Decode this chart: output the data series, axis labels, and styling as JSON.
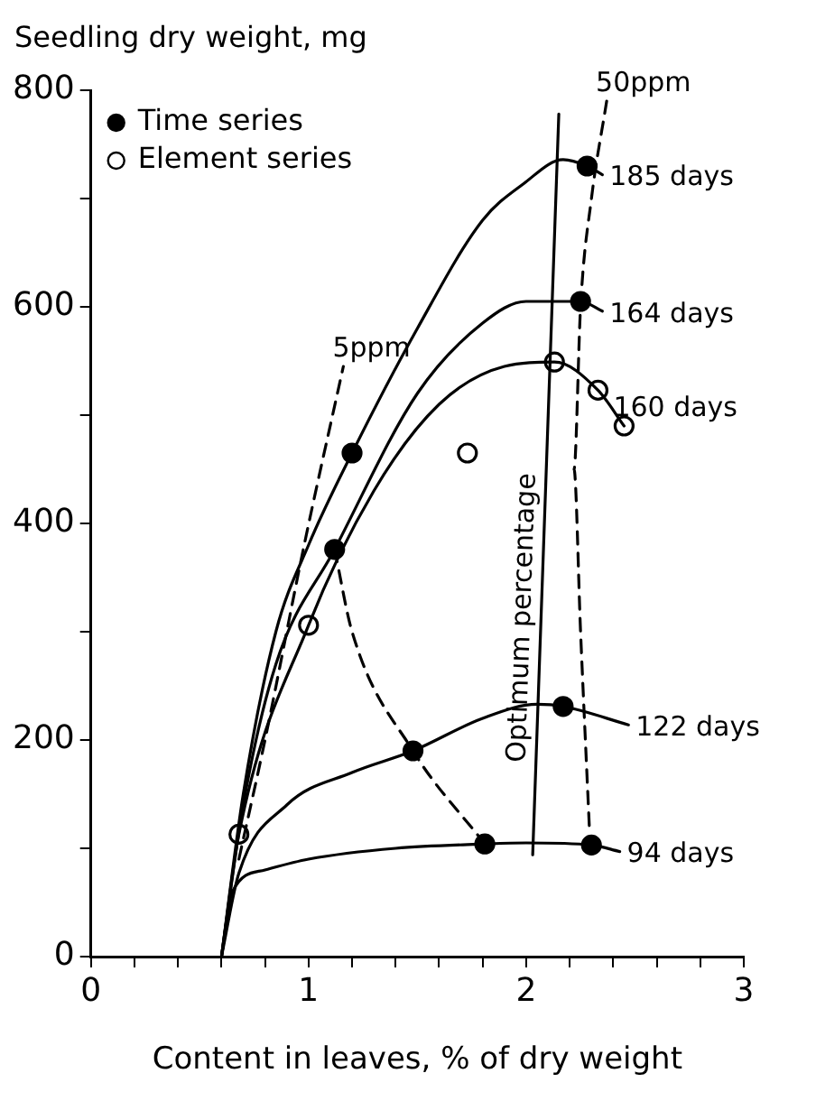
{
  "chart_data": {
    "type": "line",
    "ylabel": "Seedling dry weight, mg",
    "xlabel": "Content in leaves, % of dry weight",
    "xlim": [
      0,
      3
    ],
    "ylim": [
      0,
      800
    ],
    "xticks": [
      0,
      {
        "value": 0.2,
        "label": null
      },
      {
        "value": 0.4,
        "label": null
      },
      {
        "value": 0.6,
        "label": null
      },
      {
        "value": 0.8,
        "label": null
      },
      1,
      {
        "value": 1.2,
        "label": null
      },
      {
        "value": 1.4,
        "label": null
      },
      {
        "value": 1.6,
        "label": null
      },
      {
        "value": 1.8,
        "label": null
      },
      2,
      {
        "value": 2.2,
        "label": null
      },
      {
        "value": 2.4,
        "label": null
      },
      {
        "value": 2.6,
        "label": null
      },
      {
        "value": 2.8,
        "label": null
      },
      3
    ],
    "yticks": [
      0,
      {
        "value": 100,
        "label": null
      },
      200,
      {
        "value": 300,
        "label": null
      },
      400,
      {
        "value": 500,
        "label": null
      },
      600,
      {
        "value": 700,
        "label": null
      },
      800
    ],
    "grid": false,
    "legend": "top left",
    "series": [
      {
        "name": "185 days",
        "type": "line",
        "marker": "none",
        "line_style": "solid",
        "color": "#000000",
        "x": [
          0.6,
          0.7,
          0.85,
          1.0,
          1.2,
          1.5,
          1.8,
          1.99,
          2.17,
          2.28,
          2.35
        ],
        "values": [
          0,
          150,
          300,
          380,
          465,
          580,
          680,
          714,
          736,
          730,
          722
        ]
      },
      {
        "name": "164 days",
        "type": "line",
        "marker": "none",
        "line_style": "solid",
        "color": "#000000",
        "x": [
          0.6,
          0.7,
          0.85,
          1.12,
          1.5,
          1.8,
          2.0,
          2.25,
          2.35
        ],
        "values": [
          0,
          140,
          270,
          376,
          520,
          585,
          605,
          605,
          596
        ]
      },
      {
        "name": "160 days",
        "type": "line",
        "marker": "none",
        "line_style": "solid",
        "color": "#000000",
        "x": [
          0.6,
          0.68,
          1.0,
          1.3,
          1.6,
          1.9,
          2.13,
          2.33,
          2.45
        ],
        "values": [
          0,
          113,
          306,
          430,
          510,
          545,
          549,
          523,
          490
        ]
      },
      {
        "name": "122 days",
        "type": "line",
        "marker": "none",
        "line_style": "solid",
        "color": "#000000",
        "x": [
          0.6,
          0.68,
          0.9,
          1.2,
          1.48,
          1.8,
          2.05,
          2.17,
          2.47
        ],
        "values": [
          0,
          77,
          140,
          170,
          190,
          220,
          233,
          231,
          214
        ]
      },
      {
        "name": "94 days",
        "type": "line",
        "marker": "none",
        "line_style": "solid",
        "color": "#000000",
        "x": [
          0.6,
          0.65,
          0.8,
          1.0,
          1.4,
          1.81,
          2.0,
          2.3,
          2.43
        ],
        "values": [
          0,
          60,
          80,
          90,
          100,
          104,
          105,
          103,
          97
        ]
      },
      {
        "name": "Optimum percentage",
        "type": "line",
        "marker": "none",
        "line_style": "solid",
        "color": "#000000",
        "x": [
          2.03,
          2.15
        ],
        "values": [
          94,
          778
        ]
      },
      {
        "name": "50ppm",
        "type": "line",
        "marker": "none",
        "line_style": "dashed",
        "color": "#000000",
        "x": [
          2.29,
          2.25,
          2.22,
          2.25,
          2.3,
          2.37
        ],
        "values": [
          121,
          300,
          450,
          600,
          700,
          790
        ]
      },
      {
        "name": "5ppm",
        "type": "line",
        "marker": "none",
        "line_style": "dashed",
        "color": "#000000",
        "x": [
          0.68,
          0.8,
          0.98,
          1.16
        ],
        "values": [
          90,
          200,
          380,
          545
        ]
      },
      {
        "type": "line",
        "marker": "none",
        "line_style": "dashed",
        "color": "#000000",
        "x": [
          1.12,
          1.2,
          1.48,
          1.81
        ],
        "values": [
          376,
          300,
          190,
          104
        ]
      },
      {
        "name": "Time series",
        "type": "scatter",
        "marker": "circle",
        "color": "#000000",
        "x": [
          2.28,
          2.25,
          1.2,
          1.12,
          1.48,
          2.17,
          1.81,
          2.3
        ],
        "values": [
          730,
          605,
          465,
          376,
          190,
          231,
          104,
          103
        ]
      },
      {
        "name": "Element series",
        "type": "scatter",
        "marker": "circle",
        "color": "#ffffff",
        "x": [
          2.13,
          2.33,
          2.45,
          1.73,
          1.0,
          0.68
        ],
        "values": [
          549,
          523,
          490,
          465,
          306,
          113
        ]
      }
    ]
  }
}
